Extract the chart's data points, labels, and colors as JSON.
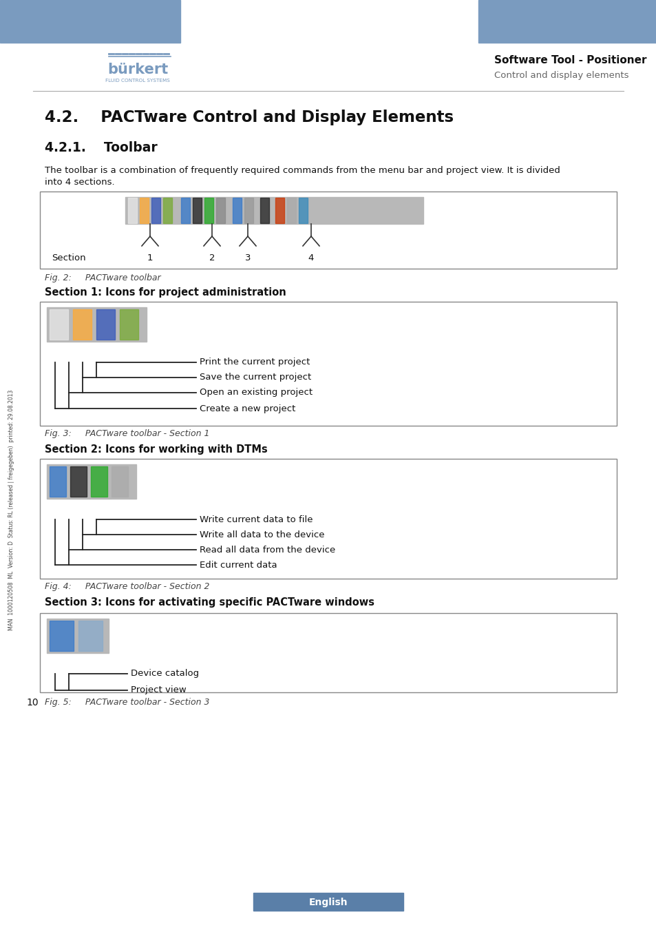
{
  "page_bg": "#ffffff",
  "header_bar_color": "#7a9bbf",
  "logo_text_line1": "burkert",
  "logo_subtext": "FLUID CONTROL SYSTEMS",
  "header_right_line1": "Software Tool - Positioner",
  "header_right_line2": "Control and display elements",
  "title_main": "4.2.    PACTware Control and Display Elements",
  "title_sub": "4.2.1.    Toolbar",
  "body_line1": "The toolbar is a combination of frequently required commands from the menu bar and project view. It is divided",
  "body_line2": "into 4 sections.",
  "fig2_caption": "Fig. 2:     PACTware toolbar",
  "fig2_section_label": "Section",
  "fig2_sections": [
    "1",
    "2",
    "3",
    "4"
  ],
  "sec1_heading": "Section 1: Icons for project administration",
  "sec1_items": [
    "Print the current project",
    "Save the current project",
    "Open an existing project",
    "Create a new project"
  ],
  "fig3_caption": "Fig. 3:     PACTware toolbar - Section 1",
  "sec2_heading": "Section 2: Icons for working with DTMs",
  "sec2_items": [
    "Write current data to file",
    "Write all data to the device",
    "Read all data from the device",
    "Edit current data"
  ],
  "fig4_caption": "Fig. 4:     PACTware toolbar - Section 2",
  "sec3_heading": "Section 3: Icons for activating specific PACTware windows",
  "sec3_items": [
    "Device catalog",
    "Project view"
  ],
  "fig5_caption": "Fig. 5:     PACTware toolbar - Section 3",
  "footer_text": "English",
  "page_number": "10",
  "sidebar_text": "MAN  1000120508  ML  Version: D  Status: RL (released | freigegeben)  printed: 29.08.2013",
  "box_border_color": "#888888",
  "toolbar_bg_color": "#b8b8b8",
  "caption_color": "#444444",
  "footer_bg": "#5a7fa8",
  "footer_text_color": "#ffffff"
}
